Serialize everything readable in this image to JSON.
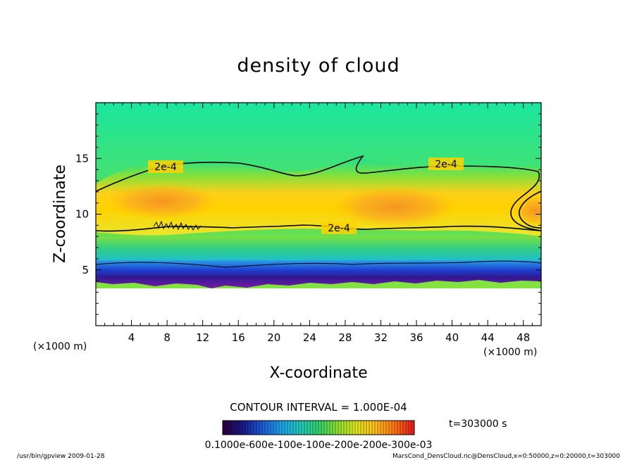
{
  "chart_data": {
    "type": "heatmap",
    "title": "density of cloud",
    "xlabel": "X-coordinate",
    "ylabel": "Z-coordinate",
    "x_unit": "(×1000 m)",
    "y_unit": "(×1000 m)",
    "xlim": [
      0,
      50
    ],
    "ylim": [
      0,
      20
    ],
    "x_ticks": [
      "4",
      "8",
      "12",
      "16",
      "20",
      "24",
      "28",
      "32",
      "36",
      "40",
      "44",
      "48"
    ],
    "y_ticks": [
      "5",
      "10",
      "15"
    ],
    "contour_interval_text": "CONTOUR INTERVAL = 1.000E-04",
    "contour_labels": [
      "2e-4",
      "2e-4",
      "2e-4"
    ],
    "time_text": "t=303000 s",
    "colorbar_labels": "0.1000e-600e-100e-100e-200e-200e-300e-03",
    "colorbar_colors": [
      "#2a0040",
      "#1a1a8a",
      "#1e5ad8",
      "#1ea0e6",
      "#22c8c0",
      "#30d26a",
      "#8ae030",
      "#e0e620",
      "#ffbe1e",
      "#ff7814",
      "#e61e1e"
    ],
    "footer_left": "/usr/bin/gpview   2009-01-28",
    "footer_right": "MarsCond_DensCloud.nc@DensCloud,x=0:50000,z=0:20000,t=303000"
  }
}
